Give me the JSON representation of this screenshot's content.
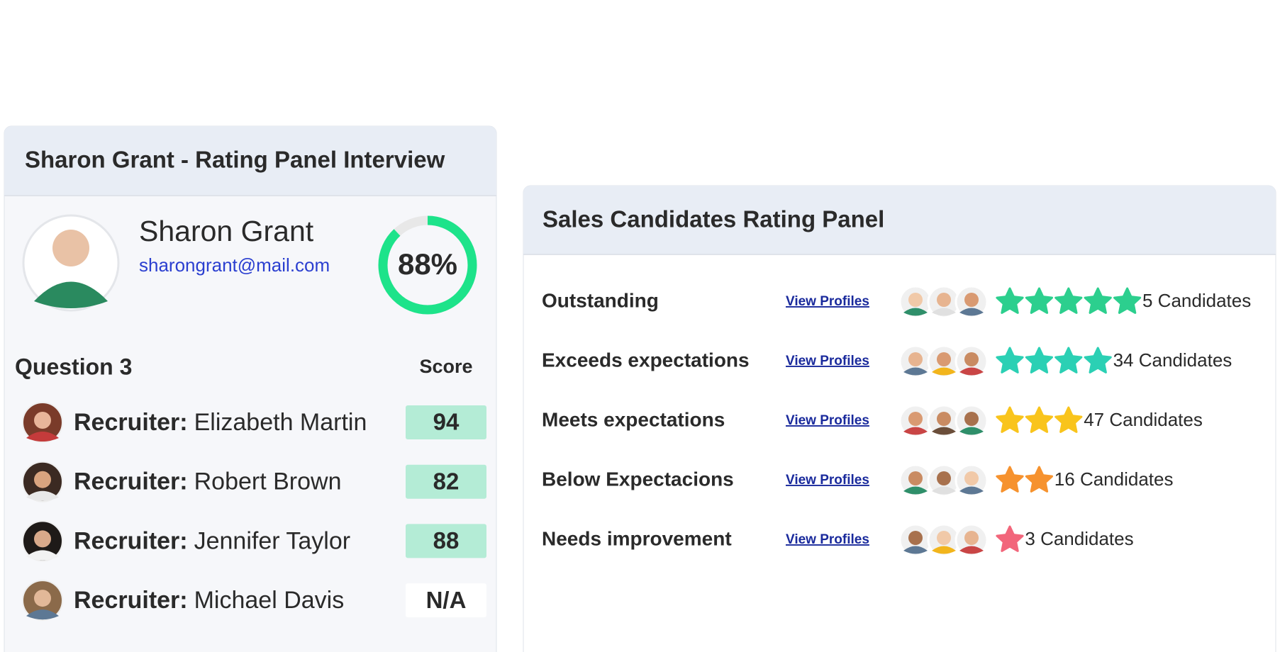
{
  "left_panel": {
    "title": "Sharon Grant - Rating Panel Interview",
    "profile": {
      "name": "Sharon Grant",
      "email": "sharongrant@mail.com",
      "score": 88,
      "score_label": "88%"
    },
    "question": "Question 3",
    "score_header": "Score",
    "recruiters": [
      {
        "role": "Recruiter:",
        "name": "Elizabeth Martin",
        "score": 94
      },
      {
        "role": "Recruiter:",
        "name": "Robert Brown",
        "score": 82
      },
      {
        "role": "Recruiter:",
        "name": "Jennifer Taylor",
        "score": 88
      },
      {
        "role": "Recruiter:",
        "name": "Michael Davis",
        "score": "N/A"
      }
    ]
  },
  "right_panel": {
    "title": "Sales Candidates Rating Panel",
    "rows": [
      {
        "label": "Outstanding",
        "link": "View Profiles",
        "stars": 5,
        "star_color": "#2ccf8e",
        "candidates": "5 Candidates"
      },
      {
        "label": "Exceeds expectations",
        "link": "View Profiles",
        "stars": 4,
        "star_color": "#2bd0b4",
        "candidates": "34 Candidates"
      },
      {
        "label": "Meets expectations",
        "link": "View Profiles",
        "stars": 3,
        "star_color": "#f9c41c",
        "candidates": "47 Candidates"
      },
      {
        "label": "Below Expectacions",
        "link": "View Profiles",
        "stars": 2,
        "star_color": "#f6922e",
        "candidates": "16 Candidates"
      },
      {
        "label": "Needs improvement",
        "link": "View Profiles",
        "stars": 1,
        "star_color": "#f2667b",
        "candidates": "3 Candidates"
      }
    ]
  }
}
